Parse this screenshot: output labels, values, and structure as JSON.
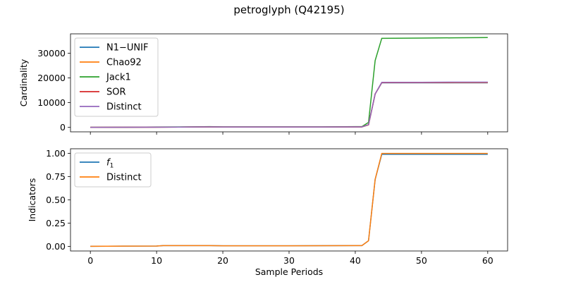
{
  "figure": {
    "title": "petroglyph (Q42195)"
  },
  "chart_data": [
    {
      "type": "line",
      "title": "petroglyph (Q42195)",
      "xlabel": "",
      "ylabel": "Cardinality",
      "xlim": [
        -3,
        63
      ],
      "ylim": [
        -1800,
        37800
      ],
      "xticks": [
        0,
        10,
        20,
        30,
        40,
        50,
        60
      ],
      "yticks": [
        0,
        10000,
        20000,
        30000
      ],
      "ytick_labels": [
        "0",
        "10000",
        "20000",
        "30000"
      ],
      "legend_position": "upper-left",
      "grid": false,
      "series": [
        {
          "name": "N1−UNIF",
          "color": "#1f77b4",
          "x": [
            0,
            5,
            10,
            15,
            18,
            20,
            25,
            30,
            35,
            40,
            41,
            42,
            43,
            44,
            50,
            55,
            60
          ],
          "y": [
            0,
            50,
            100,
            150,
            200,
            150,
            150,
            150,
            150,
            200,
            200,
            1000,
            13500,
            18000,
            18000,
            18000,
            18000
          ]
        },
        {
          "name": "Chao92",
          "color": "#ff7f0e",
          "x": [
            0,
            5,
            10,
            15,
            18,
            20,
            25,
            30,
            35,
            40,
            41,
            42,
            43,
            44,
            50,
            55,
            60
          ],
          "y": [
            0,
            50,
            100,
            150,
            200,
            150,
            150,
            150,
            150,
            200,
            200,
            1000,
            13500,
            18100,
            18100,
            18100,
            18100
          ]
        },
        {
          "name": "Jack1",
          "color": "#2ca02c",
          "x": [
            0,
            5,
            10,
            15,
            18,
            20,
            25,
            30,
            35,
            40,
            41,
            42,
            43,
            44,
            50,
            55,
            60
          ],
          "y": [
            0,
            50,
            150,
            200,
            300,
            200,
            200,
            200,
            200,
            300,
            300,
            2000,
            27000,
            36000,
            36100,
            36200,
            36300
          ]
        },
        {
          "name": "SOR",
          "color": "#d62728",
          "x": [
            0,
            5,
            10,
            15,
            18,
            20,
            25,
            30,
            35,
            40,
            41,
            42,
            43,
            44,
            50,
            55,
            60
          ],
          "y": [
            0,
            50,
            100,
            150,
            200,
            150,
            150,
            150,
            150,
            200,
            200,
            1100,
            13500,
            18100,
            18150,
            18200,
            18200
          ]
        },
        {
          "name": "Distinct",
          "color": "#9467bd",
          "x": [
            0,
            5,
            10,
            15,
            18,
            20,
            25,
            30,
            35,
            40,
            41,
            42,
            43,
            44,
            50,
            55,
            60
          ],
          "y": [
            0,
            50,
            100,
            150,
            200,
            150,
            150,
            150,
            150,
            200,
            200,
            1100,
            13500,
            18200,
            18200,
            18300,
            18300
          ]
        }
      ]
    },
    {
      "type": "line",
      "xlabel": "Sample Periods",
      "ylabel": "Indicators",
      "xlim": [
        -3,
        63
      ],
      "ylim": [
        -0.05,
        1.05
      ],
      "xticks": [
        0,
        10,
        20,
        30,
        40,
        50,
        60
      ],
      "yticks": [
        0.0,
        0.25,
        0.5,
        0.75,
        1.0
      ],
      "xtick_labels": [
        "0",
        "10",
        "20",
        "30",
        "40",
        "50",
        "60"
      ],
      "ytick_labels": [
        "0.00",
        "0.25",
        "0.50",
        "0.75",
        "1.00"
      ],
      "legend_position": "upper-left",
      "grid": false,
      "series": [
        {
          "name": "f1",
          "color": "#1f77b4",
          "x": [
            0,
            5,
            10,
            11,
            15,
            18,
            20,
            25,
            30,
            35,
            40,
            41,
            42,
            43,
            44,
            50,
            55,
            60
          ],
          "y": [
            0.0,
            0.002,
            0.003,
            0.008,
            0.008,
            0.008,
            0.006,
            0.006,
            0.006,
            0.007,
            0.008,
            0.008,
            0.06,
            0.72,
            0.99,
            0.99,
            0.99,
            0.99
          ]
        },
        {
          "name": "Distinct",
          "color": "#ff7f0e",
          "x": [
            0,
            5,
            10,
            11,
            15,
            18,
            20,
            25,
            30,
            35,
            40,
            41,
            42,
            43,
            44,
            50,
            55,
            60
          ],
          "y": [
            0.0,
            0.002,
            0.003,
            0.008,
            0.008,
            0.008,
            0.006,
            0.006,
            0.006,
            0.007,
            0.008,
            0.008,
            0.06,
            0.72,
            1.0,
            1.0,
            1.0,
            1.0
          ]
        }
      ]
    }
  ]
}
